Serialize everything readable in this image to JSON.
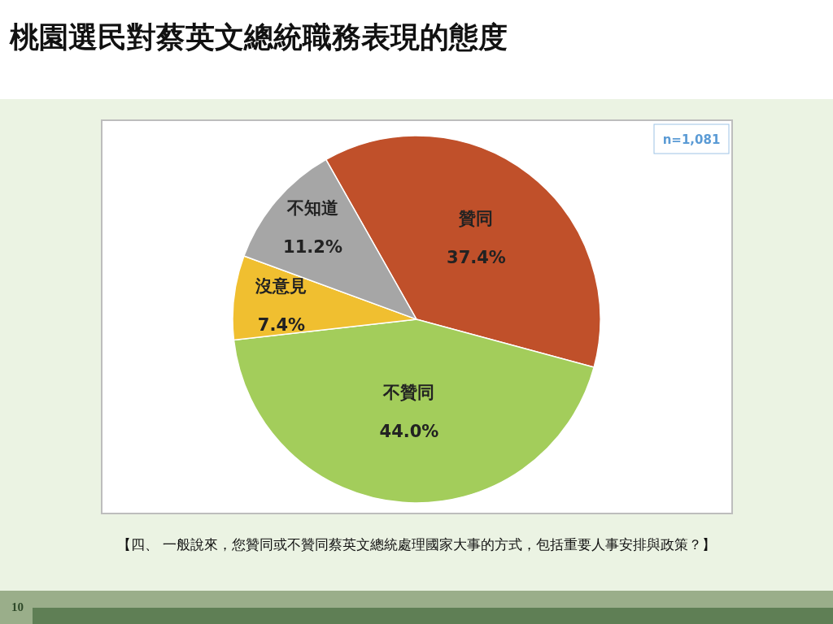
{
  "chart_data": {
    "type": "pie",
    "title": "桃園選民對蔡英文總統職務表現的態度",
    "categories": [
      "贊同",
      "不贊同",
      "沒意見",
      "不知道"
    ],
    "values": [
      37.4,
      44.0,
      7.4,
      11.2
    ],
    "value_labels": [
      "37.4%",
      "44.0%",
      "7.4%",
      "11.2%"
    ],
    "colors": [
      "#c0502a",
      "#a3cd5b",
      "#f0bf30",
      "#a6a6a6"
    ],
    "annotations": [
      "n=1,081",
      "【四、 一般說來，您贊同或不贊同蔡英文總統處理國家大事的方式，包括重要人事安排與政策？】",
      "10"
    ]
  }
}
